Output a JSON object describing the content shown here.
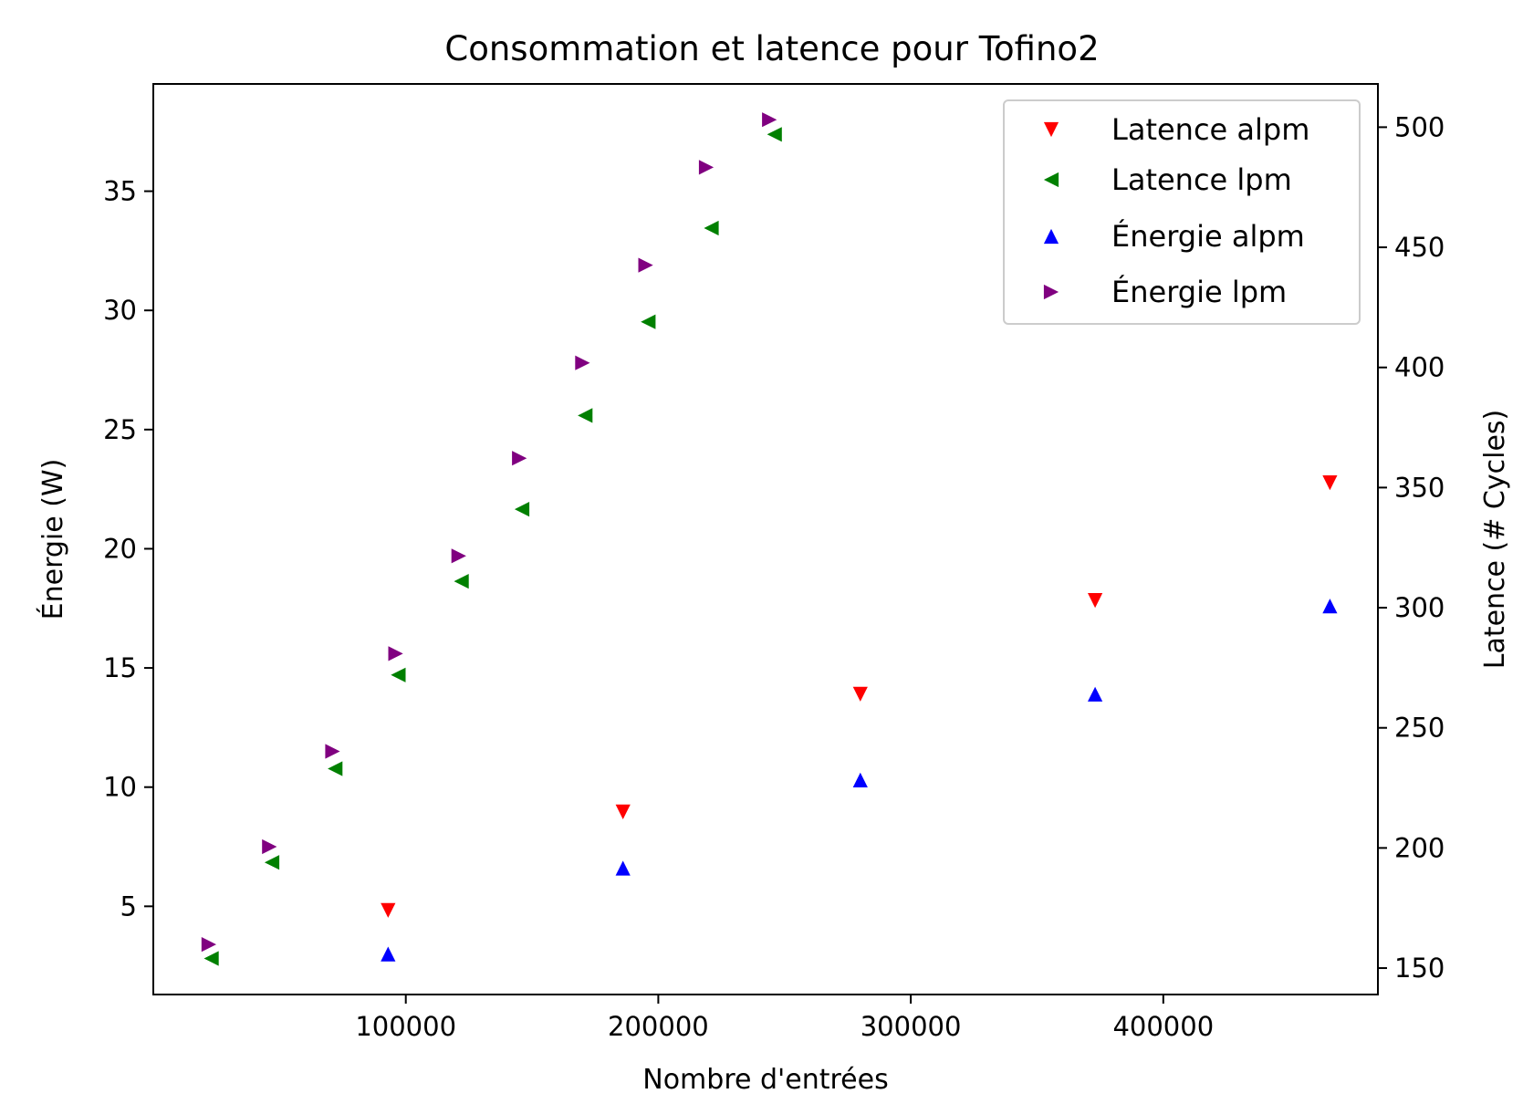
{
  "chart_data": {
    "type": "scatter",
    "title": "Consommation et latence pour Tofino2",
    "xlabel": "Nombre d'entrées",
    "ylabel_left": "Énergie (W)",
    "ylabel_right": "Latence (# Cycles)",
    "xlim": [
      0,
      485000
    ],
    "ylim_left": [
      1.3,
      39.5
    ],
    "ylim_right": [
      139,
      518
    ],
    "x_ticks": [
      100000,
      200000,
      300000,
      400000
    ],
    "x_tick_labels": [
      "100000",
      "200000",
      "300000",
      "400000"
    ],
    "y_left_ticks": [
      5,
      10,
      15,
      20,
      25,
      30,
      35
    ],
    "y_left_tick_labels": [
      "5",
      "10",
      "15",
      "20",
      "25",
      "30",
      "35"
    ],
    "y_right_ticks": [
      150,
      200,
      250,
      300,
      350,
      400,
      450,
      500
    ],
    "y_right_tick_labels": [
      "150",
      "200",
      "250",
      "300",
      "350",
      "400",
      "450",
      "500"
    ],
    "grid": false,
    "legend_position": "top-right",
    "series": [
      {
        "name": "Latence alpm",
        "axis": "right",
        "marker": "triangle-down",
        "color": "#ff0000",
        "x": [
          93000,
          186000,
          280000,
          373000,
          466000
        ],
        "y": [
          174,
          215,
          264,
          303,
          352
        ]
      },
      {
        "name": "Latence lpm",
        "axis": "right",
        "marker": "triangle-left",
        "color": "#008000",
        "x": [
          23000,
          47000,
          72000,
          97000,
          122000,
          146000,
          171000,
          196000,
          221000,
          246000
        ],
        "y": [
          154,
          194,
          233,
          272,
          311,
          341,
          380,
          419,
          458,
          497
        ]
      },
      {
        "name": "Énergie alpm",
        "axis": "left",
        "marker": "triangle-up",
        "color": "#0000ff",
        "x": [
          93000,
          186000,
          280000,
          373000,
          466000
        ],
        "y": [
          3.0,
          6.6,
          10.3,
          13.9,
          17.6
        ]
      },
      {
        "name": "Énergie lpm",
        "axis": "left",
        "marker": "triangle-right",
        "color": "#800080",
        "x": [
          22000,
          46000,
          71000,
          96000,
          121000,
          145000,
          170000,
          195000,
          219000,
          244000
        ],
        "y": [
          3.4,
          7.5,
          11.5,
          15.6,
          19.7,
          23.8,
          27.8,
          31.9,
          36.0,
          38.0
        ]
      }
    ]
  }
}
